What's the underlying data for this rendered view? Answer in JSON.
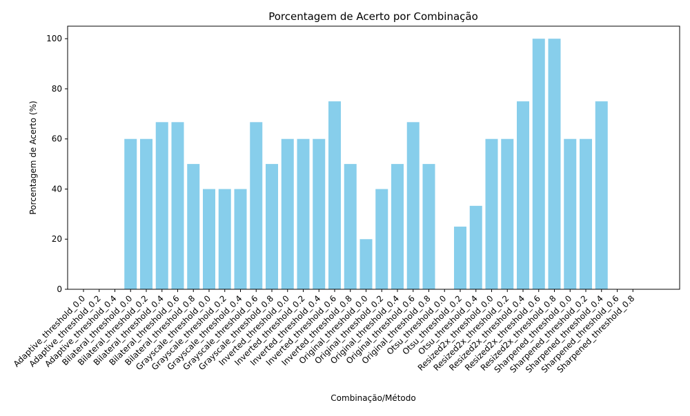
{
  "chart_data": {
    "type": "bar",
    "title": "Porcentagem de Acerto por Combinação",
    "xlabel": "Combinação/Método",
    "ylabel": "Porcentagem de Acerto (%)",
    "ylim": [
      0,
      105
    ],
    "yticks": [
      0,
      20,
      40,
      60,
      80,
      100
    ],
    "grid": false,
    "bar_color": "#87CEEB",
    "categories": [
      "Adaptive_threshold_0.0",
      "Adaptive_threshold_0.2",
      "Adaptive_threshold_0.4",
      "Bilateral_threshold_0.0",
      "Bilateral_threshold_0.2",
      "Bilateral_threshold_0.4",
      "Bilateral_threshold_0.6",
      "Bilateral_threshold_0.8",
      "Grayscale_threshold_0.0",
      "Grayscale_threshold_0.2",
      "Grayscale_threshold_0.4",
      "Grayscale_threshold_0.6",
      "Grayscale_threshold_0.8",
      "Inverted_threshold_0.0",
      "Inverted_threshold_0.2",
      "Inverted_threshold_0.4",
      "Inverted_threshold_0.6",
      "Inverted_threshold_0.8",
      "Original_threshold_0.0",
      "Original_threshold_0.2",
      "Original_threshold_0.4",
      "Original_threshold_0.6",
      "Original_threshold_0.8",
      "Otsu_threshold_0.0",
      "Otsu_threshold_0.2",
      "Otsu_threshold_0.4",
      "Resized2x_threshold_0.0",
      "Resized2x_threshold_0.2",
      "Resized2x_threshold_0.4",
      "Resized2x_threshold_0.6",
      "Resized2x_threshold_0.8",
      "Sharpened_threshold_0.0",
      "Sharpened_threshold_0.2",
      "Sharpened_threshold_0.4",
      "Sharpened_threshold_0.6",
      "Sharpened_threshold_0.8"
    ],
    "values": [
      0,
      0,
      0,
      60,
      60,
      66.7,
      66.7,
      50,
      40,
      40,
      40,
      66.7,
      50,
      60,
      60,
      60,
      75,
      50,
      20,
      40,
      50,
      66.7,
      50,
      0,
      25,
      33.3,
      60,
      60,
      75,
      100,
      100,
      60,
      60,
      75,
      0,
      0
    ]
  }
}
